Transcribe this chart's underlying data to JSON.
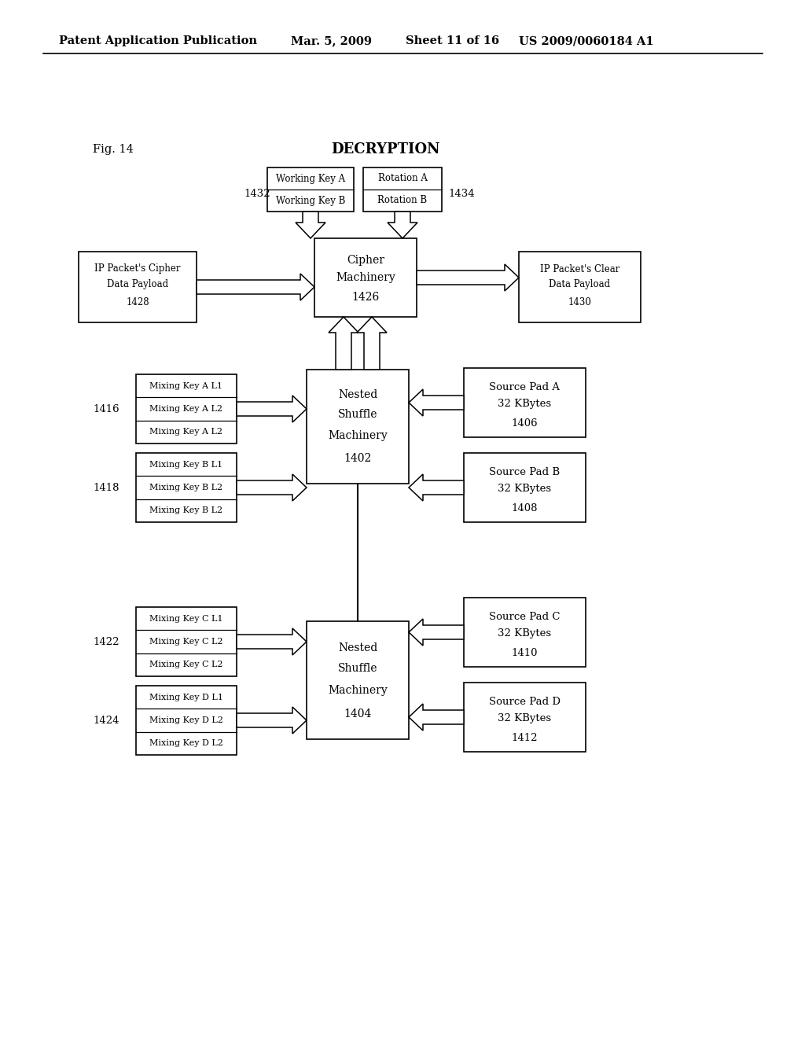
{
  "bg_color": "#ffffff",
  "header_text": "Patent Application Publication",
  "header_date": "Mar. 5, 2009",
  "header_sheet": "Sheet 11 of 16",
  "header_patent": "US 2009/0060184 A1",
  "fig_label": "Fig. 14",
  "title": "DECRYPTION"
}
